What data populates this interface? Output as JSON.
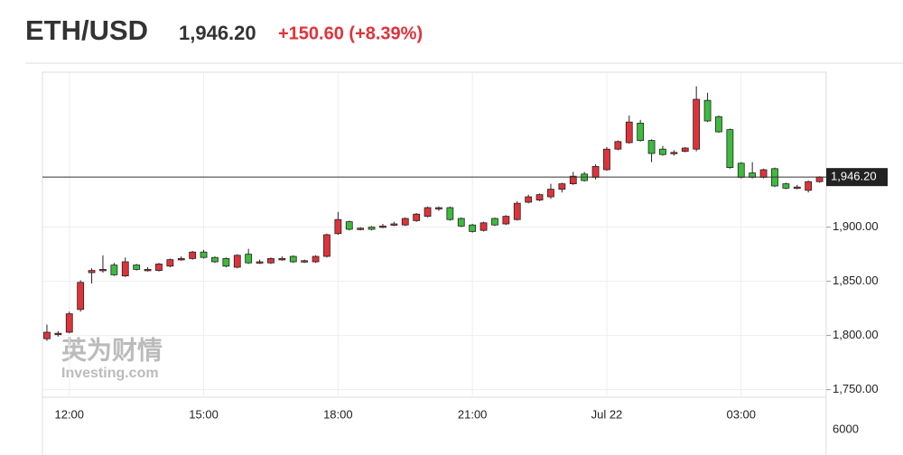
{
  "header": {
    "symbol": "ETH/USD",
    "price": "1,946.20",
    "change": "+150.60 (+8.39%)"
  },
  "watermark": {
    "cn": "英为财情",
    "en": "Investing.com"
  },
  "chart_data": {
    "type": "candlestick",
    "categories": [
      null,
      null,
      "12:00",
      null,
      null,
      null,
      null,
      null,
      null,
      null,
      null,
      null,
      null,
      null,
      "15:00",
      null,
      null,
      null,
      null,
      null,
      null,
      null,
      null,
      null,
      null,
      null,
      "18:00",
      null,
      null,
      null,
      null,
      null,
      null,
      null,
      null,
      null,
      null,
      null,
      "21:00",
      null,
      null,
      null,
      null,
      null,
      null,
      null,
      null,
      null,
      null,
      null,
      "Jul 22",
      null,
      null,
      null,
      null,
      null,
      null,
      null,
      null,
      null,
      null,
      null,
      "03:00",
      null,
      null,
      null,
      null,
      null,
      null,
      null
    ],
    "open": [
      1797,
      1801,
      1803,
      1824,
      1858,
      1860,
      1865,
      1855,
      1865,
      1860,
      1860,
      1864,
      1870,
      1871,
      1877,
      1872,
      1871,
      1863,
      1875,
      1867,
      1867,
      1870,
      1873,
      1868,
      1868,
      1873,
      1894,
      1905,
      1898,
      1900,
      1900,
      1902,
      1902,
      1906,
      1910,
      1917,
      1918,
      1908,
      1902,
      1897,
      1908,
      1903,
      1907,
      1923,
      1925,
      1928,
      1935,
      1940,
      1949,
      1946,
      1953,
      1972,
      1978,
      1996,
      1980,
      1972,
      1968,
      1970,
      1972,
      2017,
      2002,
      1990,
      1959,
      1950,
      1946,
      1954,
      1940,
      1936,
      1934,
      1942
    ],
    "high": [
      1810,
      1804,
      1822,
      1851,
      1862,
      1874,
      1867,
      1872,
      1866,
      1863,
      1867,
      1871,
      1873,
      1878,
      1879,
      1873,
      1872,
      1875,
      1880,
      1870,
      1872,
      1873,
      1874,
      1870,
      1874,
      1894,
      1914,
      1906,
      1900,
      1901,
      1903,
      1905,
      1909,
      1913,
      1919,
      1919,
      1919,
      1909,
      1903,
      1905,
      1909,
      1911,
      1924,
      1930,
      1931,
      1940,
      1941,
      1951,
      1951,
      1958,
      1974,
      1980,
      2003,
      1999,
      1981,
      1975,
      1971,
      1974,
      2030,
      2024,
      2003,
      1991,
      1960,
      1960,
      1954,
      1955,
      1941,
      1939,
      1943,
      1947
    ],
    "low": [
      1795,
      1799,
      1802,
      1822,
      1848,
      1858,
      1855,
      1854,
      1860,
      1859,
      1859,
      1863,
      1869,
      1870,
      1871,
      1867,
      1863,
      1862,
      1866,
      1866,
      1866,
      1869,
      1867,
      1867,
      1867,
      1872,
      1893,
      1897,
      1897,
      1897,
      1899,
      1901,
      1901,
      1905,
      1909,
      1915,
      1906,
      1900,
      1895,
      1896,
      1901,
      1902,
      1906,
      1922,
      1924,
      1926,
      1932,
      1939,
      1942,
      1944,
      1952,
      1971,
      1977,
      1979,
      1960,
      1966,
      1966,
      1969,
      1970,
      1997,
      1987,
      1954,
      1945,
      1945,
      1945,
      1937,
      1935,
      1935,
      1932,
      1941
    ],
    "close": [
      1803,
      1802,
      1820,
      1849,
      1860,
      1861,
      1856,
      1868,
      1861,
      1861,
      1866,
      1870,
      1871,
      1877,
      1872,
      1868,
      1864,
      1874,
      1867,
      1868,
      1871,
      1871,
      1868,
      1869,
      1873,
      1893,
      1907,
      1898,
      1899,
      1898,
      1901,
      1903,
      1908,
      1912,
      1918,
      1918,
      1907,
      1901,
      1896,
      1904,
      1902,
      1910,
      1922,
      1928,
      1930,
      1935,
      1940,
      1947,
      1943,
      1956,
      1972,
      1979,
      1997,
      1980,
      1968,
      1967,
      1969,
      1973,
      2018,
      1998,
      1988,
      1955,
      1946,
      1946,
      1953,
      1938,
      1936,
      1937,
      1942,
      1946.2
    ],
    "color_up": "#e0323a",
    "color_down": "#3dbb3d",
    "ylim": [
      1743,
      2043
    ],
    "yticks": [
      {
        "value": 1900,
        "label": "1,900.00"
      },
      {
        "value": 1850,
        "label": "1,850.00"
      },
      {
        "value": 1800,
        "label": "1,800.00"
      },
      {
        "value": 1750,
        "label": "1,750.00"
      }
    ],
    "last_price": {
      "value": 1946.2,
      "label": "1,946.20"
    },
    "volume_ticks": [
      6000
    ],
    "grid": true
  }
}
